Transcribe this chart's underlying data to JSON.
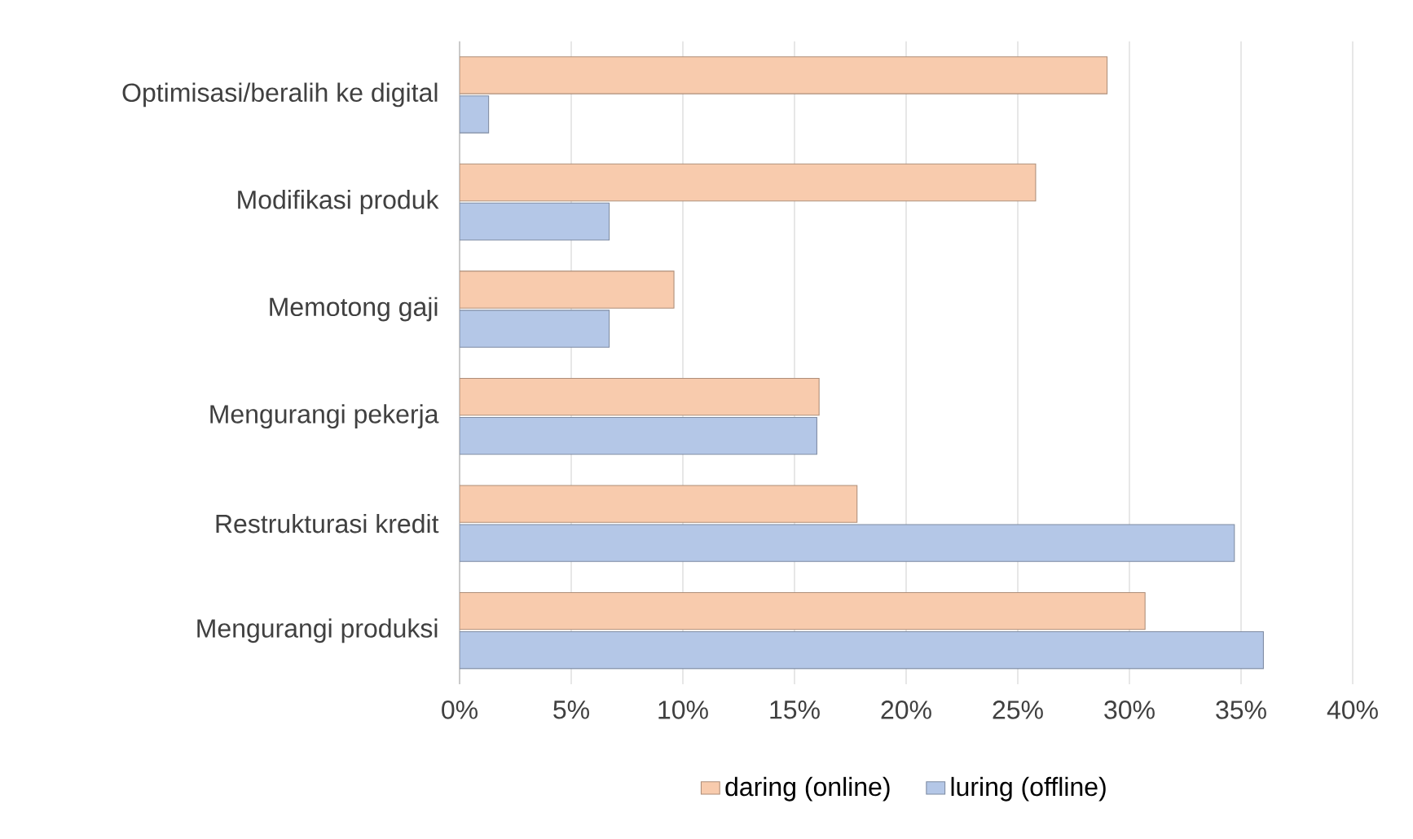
{
  "chart_data": {
    "type": "bar",
    "orientation": "horizontal",
    "categories": [
      "Optimisasi/beralih ke digital",
      "Modifikasi produk",
      "Memotong gaji",
      "Mengurangi pekerja",
      "Restrukturasi kredit",
      "Mengurangi produksi"
    ],
    "series": [
      {
        "name": "daring (online)",
        "color": "#f8cbad",
        "values": [
          29.0,
          25.8,
          9.6,
          16.1,
          17.8,
          30.7
        ]
      },
      {
        "name": "luring (offline)",
        "color": "#b4c7e7",
        "values": [
          1.3,
          6.7,
          6.7,
          16.0,
          34.7,
          36.0
        ]
      }
    ],
    "xlim": [
      0,
      40
    ],
    "xticks": [
      {
        "value": 0,
        "label": "0%"
      },
      {
        "value": 5,
        "label": "5%"
      },
      {
        "value": 10,
        "label": "10%"
      },
      {
        "value": 15,
        "label": "15%"
      },
      {
        "value": 20,
        "label": "20%"
      },
      {
        "value": 25,
        "label": "25%"
      },
      {
        "value": 30,
        "label": "30%"
      },
      {
        "value": 35,
        "label": "35%"
      },
      {
        "value": 40,
        "label": "40%"
      }
    ],
    "grid": "x",
    "legend": "bottom"
  }
}
